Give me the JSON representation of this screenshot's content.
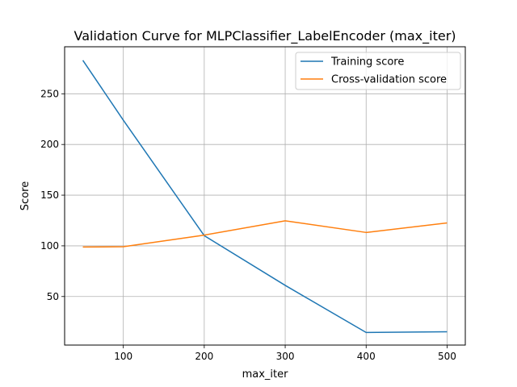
{
  "chart_data": {
    "type": "line",
    "title": "Validation Curve for MLPClassifier_LabelEncoder (max_iter)",
    "xlabel": "max_iter",
    "ylabel": "Score",
    "x": [
      50,
      100,
      200,
      300,
      400,
      500
    ],
    "series": [
      {
        "name": "Training score",
        "color": "#1f77b4",
        "values": [
          283,
          224,
          110,
          61,
          14.5,
          15.2
        ]
      },
      {
        "name": "Cross-validation score",
        "color": "#ff7f0e",
        "values": [
          98.8,
          99.1,
          110.6,
          124.7,
          113.2,
          122.6
        ]
      }
    ],
    "xlim": [
      27.5,
      522.5
    ],
    "ylim": [
      2.1,
      296.4
    ],
    "xticks": [
      100,
      200,
      300,
      400,
      500
    ],
    "yticks": [
      50,
      100,
      150,
      200,
      250
    ],
    "grid": true,
    "legend": "upper right"
  }
}
